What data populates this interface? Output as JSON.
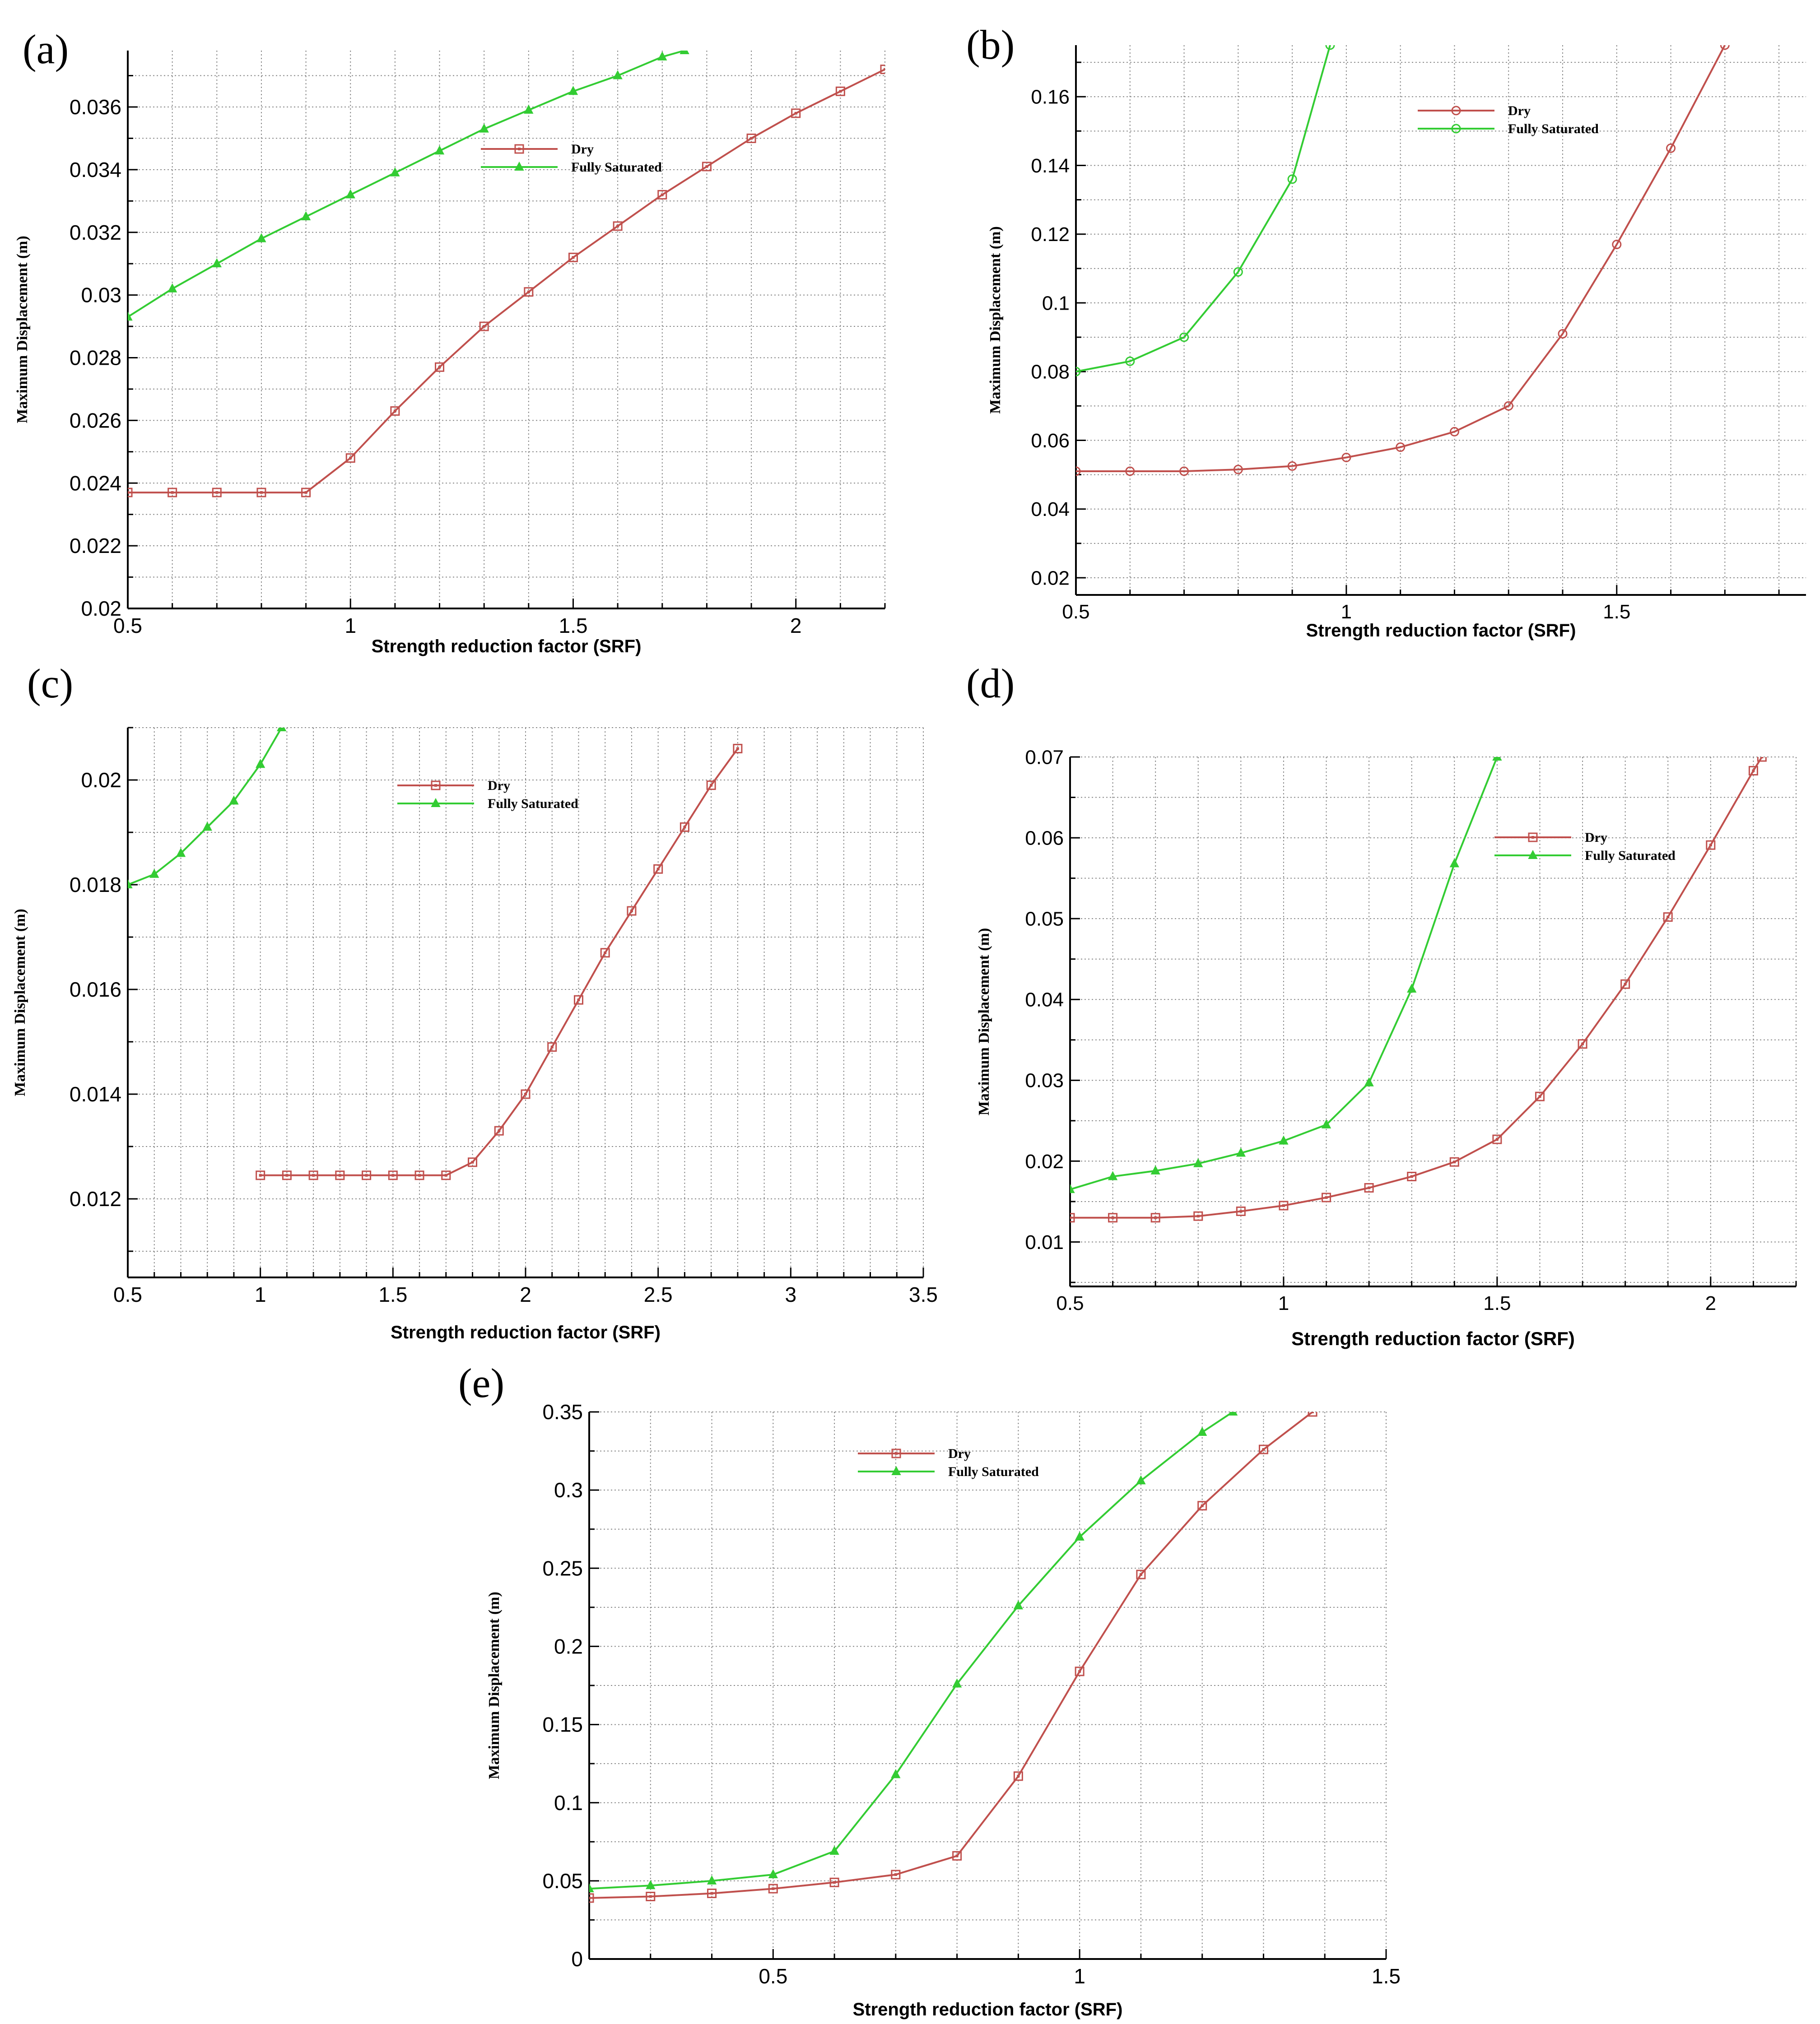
{
  "figure": {
    "colors": {
      "dry": "#c0504d",
      "saturated": "#33cc33",
      "grid": "#8a8a8a",
      "axis": "#000000"
    }
  },
  "chart_data": [
    {
      "panel_label": "(a)",
      "type": "line",
      "xlabel": "Strength reduction factor (SRF)",
      "ylabel": "Maximum Displacement (m)",
      "xlim": [
        0.5,
        2.2
      ],
      "ylim": [
        0.02,
        0.0378
      ],
      "xticks": [
        0.5,
        1,
        1.5,
        2
      ],
      "xtick_labels": [
        "0.5",
        "1",
        "1.5",
        "2"
      ],
      "yticks": [
        0.02,
        0.022,
        0.024,
        0.026,
        0.028,
        0.03,
        0.032,
        0.034,
        0.036
      ],
      "ytick_labels": [
        "0.02",
        "0.022",
        "0.024",
        "0.026",
        "0.028",
        "0.03",
        "0.032",
        "0.034",
        "0.036"
      ],
      "grid": true,
      "legend_position": "top-center",
      "series": [
        {
          "name": "Dry",
          "marker": "square",
          "x": [
            0.5,
            0.6,
            0.7,
            0.8,
            0.9,
            1.0,
            1.1,
            1.2,
            1.3,
            1.4,
            1.5,
            1.6,
            1.7,
            1.8,
            1.9,
            2.0,
            2.1,
            2.2
          ],
          "y": [
            0.0237,
            0.0237,
            0.0237,
            0.0237,
            0.0237,
            0.0248,
            0.0263,
            0.0277,
            0.029,
            0.0301,
            0.0312,
            0.0322,
            0.0332,
            0.0341,
            0.035,
            0.0358,
            0.0365,
            0.0372
          ]
        },
        {
          "name": "Fully Saturated",
          "marker": "triangle",
          "x": [
            0.5,
            0.6,
            0.7,
            0.8,
            0.9,
            1.0,
            1.1,
            1.2,
            1.3,
            1.4,
            1.5,
            1.6,
            1.7,
            1.75
          ],
          "y": [
            0.0293,
            0.0302,
            0.031,
            0.0318,
            0.0325,
            0.0332,
            0.0339,
            0.0346,
            0.0353,
            0.0359,
            0.0365,
            0.037,
            0.0376,
            0.0378
          ]
        }
      ]
    },
    {
      "panel_label": "(b)",
      "type": "line",
      "xlabel": "Strength reduction factor (SRF)",
      "ylabel": "Maximum Displacement (m)",
      "xlim": [
        0.5,
        1.85
      ],
      "ylim": [
        0.015,
        0.175
      ],
      "xticks": [
        0.5,
        1,
        1.5
      ],
      "xtick_labels": [
        "0.5",
        "1",
        "1.5"
      ],
      "yticks": [
        0.02,
        0.04,
        0.06,
        0.08,
        0.1,
        0.12,
        0.14,
        0.16
      ],
      "ytick_labels": [
        "0.02",
        "0.04",
        "0.06",
        "0.08",
        "0.1",
        "0.12",
        "0.14",
        "0.16"
      ],
      "grid": true,
      "legend_position": "top-center",
      "series": [
        {
          "name": "Dry",
          "marker": "circle",
          "x": [
            0.5,
            0.6,
            0.7,
            0.8,
            0.9,
            1.0,
            1.1,
            1.2,
            1.3,
            1.4,
            1.5,
            1.6,
            1.7
          ],
          "y": [
            0.051,
            0.051,
            0.051,
            0.0515,
            0.0525,
            0.055,
            0.058,
            0.0625,
            0.07,
            0.091,
            0.117,
            0.145,
            0.175
          ]
        },
        {
          "name": "Fully Saturated",
          "marker": "circle",
          "x": [
            0.5,
            0.6,
            0.7,
            0.8,
            0.9,
            0.97
          ],
          "y": [
            0.08,
            0.083,
            0.09,
            0.109,
            0.136,
            0.175
          ]
        }
      ]
    },
    {
      "panel_label": "(c)",
      "type": "line",
      "xlabel": "Strength reduction factor (SRF)",
      "ylabel": "Maximum Displacement (m)",
      "xlim": [
        0.5,
        3.5
      ],
      "ylim": [
        0.0105,
        0.021
      ],
      "xticks": [
        0.5,
        1,
        1.5,
        2,
        2.5,
        3,
        3.5
      ],
      "xtick_labels": [
        "0.5",
        "1",
        "1.5",
        "2",
        "2.5",
        "3",
        "3.5"
      ],
      "yticks": [
        0.012,
        0.014,
        0.016,
        0.018,
        0.02
      ],
      "ytick_labels": [
        "0.012",
        "0.014",
        "0.016",
        "0.018",
        "0.02"
      ],
      "grid": true,
      "legend_position": "top-center",
      "series": [
        {
          "name": "Dry",
          "marker": "square",
          "x": [
            1.0,
            1.1,
            1.2,
            1.3,
            1.4,
            1.5,
            1.6,
            1.7,
            1.8,
            1.9,
            2.0,
            2.1,
            2.2,
            2.3,
            2.4,
            2.5,
            2.6,
            2.7,
            2.8
          ],
          "y": [
            0.01245,
            0.01245,
            0.01245,
            0.01245,
            0.01245,
            0.01245,
            0.01245,
            0.01245,
            0.0127,
            0.0133,
            0.014,
            0.0149,
            0.0158,
            0.0167,
            0.0175,
            0.0183,
            0.0191,
            0.0199,
            0.0206
          ]
        },
        {
          "name": "Fully Saturated",
          "marker": "triangle",
          "x": [
            0.5,
            0.6,
            0.7,
            0.8,
            0.9,
            1.0,
            1.08
          ],
          "y": [
            0.018,
            0.0182,
            0.0186,
            0.0191,
            0.0196,
            0.0203,
            0.021
          ]
        }
      ]
    },
    {
      "panel_label": "(d)",
      "type": "line",
      "xlabel": "Strength reduction factor (SRF)",
      "ylabel": "Maximum Displacement (m)",
      "xlim": [
        0.5,
        2.2
      ],
      "ylim": [
        0.0045,
        0.07
      ],
      "xticks": [
        0.5,
        1,
        1.5,
        2
      ],
      "xtick_labels": [
        "0.5",
        "1",
        "1.5",
        "2"
      ],
      "yticks": [
        0.01,
        0.02,
        0.03,
        0.04,
        0.05,
        0.06,
        0.07
      ],
      "ytick_labels": [
        "0.01",
        "0.02",
        "0.03",
        "0.04",
        "0.05",
        "0.06",
        "0.07"
      ],
      "grid": true,
      "legend_position": "top-right",
      "series": [
        {
          "name": "Dry",
          "marker": "square",
          "x": [
            0.5,
            0.6,
            0.7,
            0.8,
            0.9,
            1.0,
            1.1,
            1.2,
            1.3,
            1.4,
            1.5,
            1.6,
            1.7,
            1.8,
            1.9,
            2.0,
            2.1,
            2.12
          ],
          "y": [
            0.013,
            0.013,
            0.013,
            0.0132,
            0.0138,
            0.0145,
            0.0155,
            0.0167,
            0.0181,
            0.0199,
            0.0227,
            0.028,
            0.0345,
            0.0419,
            0.0502,
            0.0591,
            0.0683,
            0.07
          ]
        },
        {
          "name": "Fully Saturated",
          "marker": "triangle",
          "x": [
            0.5,
            0.6,
            0.7,
            0.8,
            0.9,
            1.0,
            1.1,
            1.2,
            1.3,
            1.4,
            1.5
          ],
          "y": [
            0.0165,
            0.0181,
            0.0188,
            0.0197,
            0.021,
            0.0225,
            0.0245,
            0.0297,
            0.0413,
            0.0568,
            0.07
          ]
        }
      ]
    },
    {
      "panel_label": "(e)",
      "type": "line",
      "xlabel": "Strength reduction factor (SRF)",
      "ylabel": "Maximum Displacement (m)",
      "xlim": [
        0.2,
        1.5
      ],
      "ylim": [
        0,
        0.35
      ],
      "xticks": [
        0.5,
        1,
        1.5
      ],
      "xtick_labels": [
        "0.5",
        "1",
        "1.5"
      ],
      "yticks": [
        0,
        0.05,
        0.1,
        0.15,
        0.2,
        0.25,
        0.3,
        0.35
      ],
      "ytick_labels": [
        "0",
        "0.05",
        "0.1",
        "0.15",
        "0.2",
        "0.25",
        "0.3",
        "0.35"
      ],
      "grid": true,
      "legend_position": "top-center",
      "series": [
        {
          "name": "Dry",
          "marker": "square",
          "x": [
            0.2,
            0.3,
            0.4,
            0.5,
            0.6,
            0.7,
            0.8,
            0.9,
            1.0,
            1.1,
            1.2,
            1.3,
            1.38
          ],
          "y": [
            0.039,
            0.04,
            0.042,
            0.045,
            0.049,
            0.054,
            0.066,
            0.117,
            0.184,
            0.246,
            0.29,
            0.326,
            0.35
          ]
        },
        {
          "name": "Fully Saturated",
          "marker": "triangle",
          "x": [
            0.2,
            0.3,
            0.4,
            0.5,
            0.6,
            0.7,
            0.8,
            0.9,
            1.0,
            1.1,
            1.2,
            1.25
          ],
          "y": [
            0.045,
            0.047,
            0.05,
            0.054,
            0.069,
            0.118,
            0.176,
            0.226,
            0.27,
            0.306,
            0.337,
            0.35
          ]
        }
      ]
    }
  ]
}
